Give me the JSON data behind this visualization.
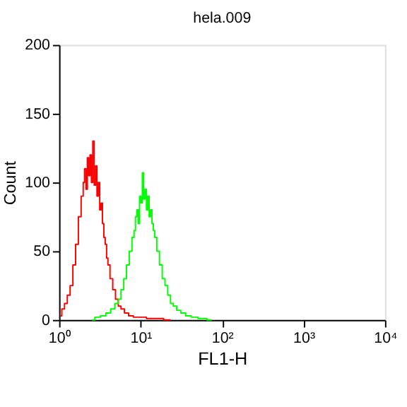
{
  "chart_data": {
    "type": "step",
    "title": "hela.009",
    "xlabel": "FL1-H",
    "ylabel": "Count",
    "log": "x",
    "xlim": [
      1,
      10000
    ],
    "ylim": [
      0,
      200
    ],
    "xticks": [
      {
        "value": 1,
        "label": "10⁰"
      },
      {
        "value": 10,
        "label": "10¹"
      },
      {
        "value": 100,
        "label": "10²"
      },
      {
        "value": 1000,
        "label": "10³"
      },
      {
        "value": 10000,
        "label": "10⁴"
      }
    ],
    "yticks": [
      0,
      50,
      100,
      150,
      200
    ],
    "grid": false,
    "legend": false,
    "series": [
      {
        "color": "#ff0000",
        "x": [
          1.04,
          1.12,
          1.21,
          1.31,
          1.42,
          1.53,
          1.66,
          1.79,
          1.94,
          2.01,
          2.09,
          2.18,
          2.26,
          2.35,
          2.44,
          2.54,
          2.64,
          2.75,
          2.86,
          2.97,
          3.09,
          3.21,
          3.34,
          3.47,
          3.61,
          3.75,
          3.9,
          4.05,
          4.38,
          4.73,
          5.12,
          5.53,
          5.97,
          6.71,
          7.55,
          8.81,
          10.7,
          13.0,
          15.8,
          23.3
        ],
        "values": [
          3,
          8,
          12,
          18,
          25,
          40,
          55,
          75,
          90,
          100,
          110,
          95,
          118,
          105,
          120,
          100,
          130,
          98,
          112,
          90,
          100,
          80,
          85,
          70,
          60,
          55,
          45,
          40,
          30,
          22,
          15,
          10,
          8,
          5,
          3,
          2,
          2,
          1,
          1,
          0
        ]
      },
      {
        "color": "#00ff00",
        "x": [
          2.54,
          2.97,
          3.47,
          4.05,
          4.55,
          5.12,
          5.53,
          5.97,
          6.46,
          6.98,
          7.55,
          8.15,
          8.47,
          8.81,
          9.16,
          9.52,
          9.9,
          10.3,
          10.7,
          11.1,
          11.6,
          12.0,
          12.5,
          13.0,
          13.5,
          14.1,
          14.6,
          15.2,
          16.4,
          17.7,
          19.2,
          20.7,
          22.4,
          24.2,
          26.2,
          29.4,
          33.0,
          38.6,
          45.1,
          56.9,
          74.7
        ],
        "values": [
          0,
          2,
          3,
          5,
          8,
          12,
          15,
          22,
          30,
          40,
          50,
          60,
          65,
          75,
          80,
          70,
          90,
          85,
          107,
          88,
          95,
          80,
          90,
          75,
          80,
          70,
          65,
          60,
          50,
          40,
          30,
          25,
          18,
          12,
          10,
          7,
          5,
          3,
          2,
          1,
          0
        ]
      }
    ]
  }
}
